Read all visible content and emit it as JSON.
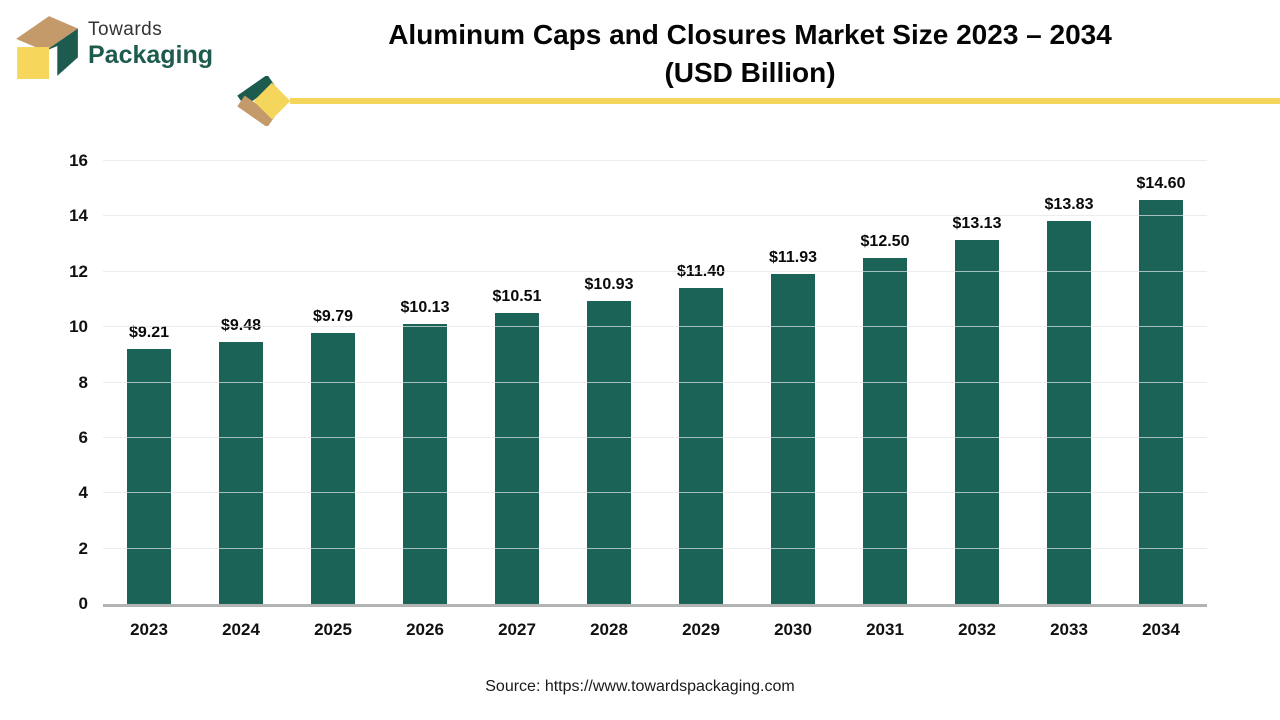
{
  "brand": {
    "line1": "Towards",
    "line2": "Packaging",
    "colors": {
      "green": "#1E5B4F",
      "tan": "#C49A6B",
      "yellow": "#F7D65C"
    }
  },
  "header": {
    "title_line1": "Aluminum Caps and Closures Market Size 2023 – 2034",
    "title_line2": "(USD Billion)"
  },
  "chart_data": {
    "type": "bar",
    "title": "Aluminum Caps and Closures Market Size 2023 – 2034 (USD Billion)",
    "categories": [
      "2023",
      "2024",
      "2025",
      "2026",
      "2027",
      "2028",
      "2029",
      "2030",
      "2031",
      "2032",
      "2033",
      "2034"
    ],
    "values": [
      9.21,
      9.48,
      9.79,
      10.13,
      10.51,
      10.93,
      11.4,
      11.93,
      12.5,
      13.13,
      13.83,
      14.6
    ],
    "value_labels": [
      "$9.21",
      "$9.48",
      "$9.79",
      "$10.13",
      "$10.51",
      "$10.93",
      "$11.40",
      "$11.93",
      "$12.50",
      "$13.13",
      "$13.83",
      "$14.60"
    ],
    "xlabel": "",
    "ylabel": "",
    "ylim": [
      0,
      16
    ],
    "yticks": [
      0,
      2,
      4,
      6,
      8,
      10,
      12,
      14,
      16
    ],
    "grid": true,
    "legend": false,
    "bar_color": "#1B6357"
  },
  "footer": {
    "source": "Source: https://www.towardspackaging.com"
  }
}
